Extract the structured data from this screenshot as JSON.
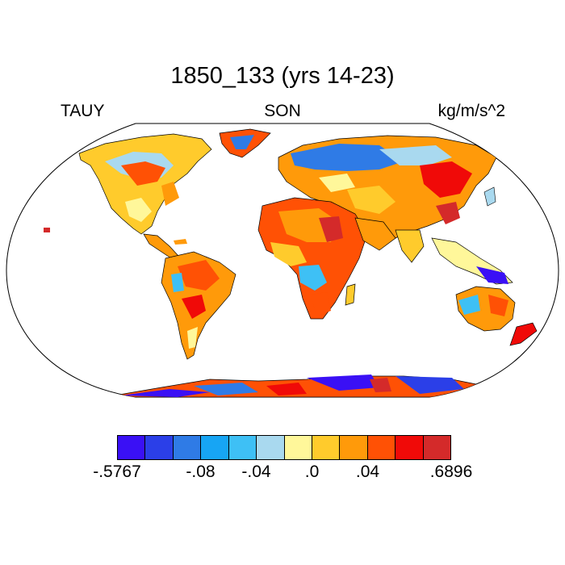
{
  "title": "1850_133 (yrs 14-23)",
  "left_label": "TAUY",
  "center_label": "SON",
  "right_label": "kg/m/s^2",
  "colorbar": {
    "colors": [
      "#3a10f5",
      "#2b3fe8",
      "#2f7be6",
      "#17a5f4",
      "#3ec0f5",
      "#a9d9ef",
      "#fff79a",
      "#ffcb2c",
      "#ff9a0a",
      "#ff5105",
      "#f00a08",
      "#d42a2a"
    ],
    "tick_labels": [
      {
        "text": "-.5767",
        "boundary": 0
      },
      {
        "text": "-.08",
        "boundary": 3
      },
      {
        "text": "-.04",
        "boundary": 5
      },
      {
        "text": ".0",
        "boundary": 7
      },
      {
        "text": ".04",
        "boundary": 9
      },
      {
        "text": ".6896",
        "boundary": 12
      }
    ]
  },
  "map": {
    "projection": "robinson",
    "ocean_color": "#ffffff",
    "outline_color": "#000000"
  }
}
